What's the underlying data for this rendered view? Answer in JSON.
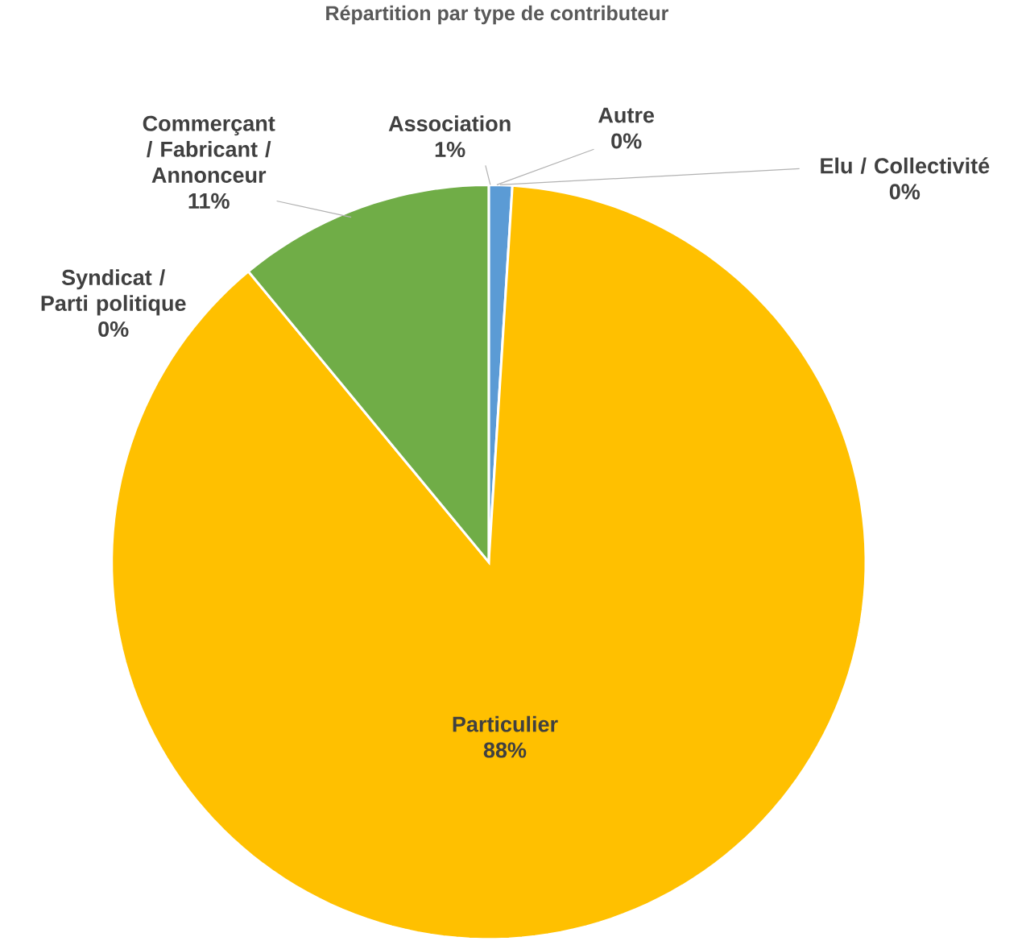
{
  "chart_data": {
    "type": "pie",
    "title": "Répartition par type de contributeur",
    "categories": [
      "Association",
      "Autre",
      "Elu / Collectivité",
      "Particulier",
      "Syndicat / Parti politique",
      "Commerçant / Fabricant / Annonceur"
    ],
    "values": [
      1,
      0,
      0,
      88,
      0,
      11
    ],
    "value_labels": [
      "1%",
      "0%",
      "0%",
      "88%",
      "0%",
      "11%"
    ],
    "colors": [
      "#5b9bd5",
      "#ed7d31",
      "#a5a5a5",
      "#ffc000",
      "#4472c4",
      "#70ad47"
    ]
  }
}
